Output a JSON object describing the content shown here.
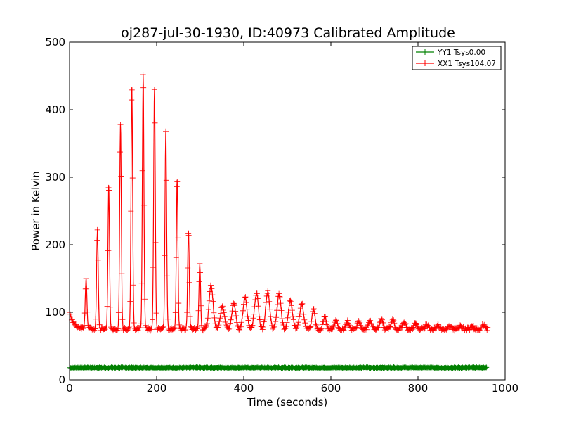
{
  "chart_data": {
    "type": "line",
    "title": "oj287-jul-30-1930, ID:40973 Calibrated Amplitude",
    "xlabel": "Time (seconds)",
    "ylabel": "Power in Kelvin",
    "xlim": [
      0,
      1000
    ],
    "ylim": [
      0,
      500
    ],
    "xticks": [
      "0",
      "200",
      "400",
      "600",
      "800",
      "1000"
    ],
    "yticks": [
      "0",
      "100",
      "200",
      "300",
      "400",
      "500"
    ],
    "grid": false,
    "legend_position": "top-right",
    "marker": "plus",
    "series": [
      {
        "name": "YY1 Tsys0.00",
        "color": "#008000",
        "x_range": [
          0,
          960
        ],
        "value": 18
      },
      {
        "name": "XX1 Tsys104.07",
        "color": "#ff0000",
        "x_range": [
          0,
          960
        ],
        "baseline_start": 100,
        "baseline": 75,
        "peaks": [
          {
            "x": 38,
            "y": 150
          },
          {
            "x": 64,
            "y": 222
          },
          {
            "x": 90,
            "y": 288
          },
          {
            "x": 117,
            "y": 378
          },
          {
            "x": 143,
            "y": 433
          },
          {
            "x": 169,
            "y": 453
          },
          {
            "x": 195,
            "y": 430
          },
          {
            "x": 221,
            "y": 368
          },
          {
            "x": 247,
            "y": 296
          },
          {
            "x": 273,
            "y": 220
          },
          {
            "x": 299,
            "y": 172
          },
          {
            "x": 325,
            "y": 140
          },
          {
            "x": 351,
            "y": 108
          },
          {
            "x": 377,
            "y": 112
          },
          {
            "x": 403,
            "y": 122
          },
          {
            "x": 429,
            "y": 128
          },
          {
            "x": 455,
            "y": 130
          },
          {
            "x": 481,
            "y": 126
          },
          {
            "x": 507,
            "y": 118
          },
          {
            "x": 533,
            "y": 112
          },
          {
            "x": 560,
            "y": 104
          },
          {
            "x": 586,
            "y": 94
          },
          {
            "x": 612,
            "y": 88
          },
          {
            "x": 638,
            "y": 86
          },
          {
            "x": 664,
            "y": 86
          },
          {
            "x": 690,
            "y": 88
          },
          {
            "x": 716,
            "y": 90
          },
          {
            "x": 742,
            "y": 88
          },
          {
            "x": 768,
            "y": 86
          },
          {
            "x": 794,
            "y": 84
          },
          {
            "x": 820,
            "y": 82
          },
          {
            "x": 846,
            "y": 80
          },
          {
            "x": 872,
            "y": 80
          },
          {
            "x": 898,
            "y": 80
          },
          {
            "x": 924,
            "y": 80
          },
          {
            "x": 950,
            "y": 82
          }
        ]
      }
    ]
  }
}
